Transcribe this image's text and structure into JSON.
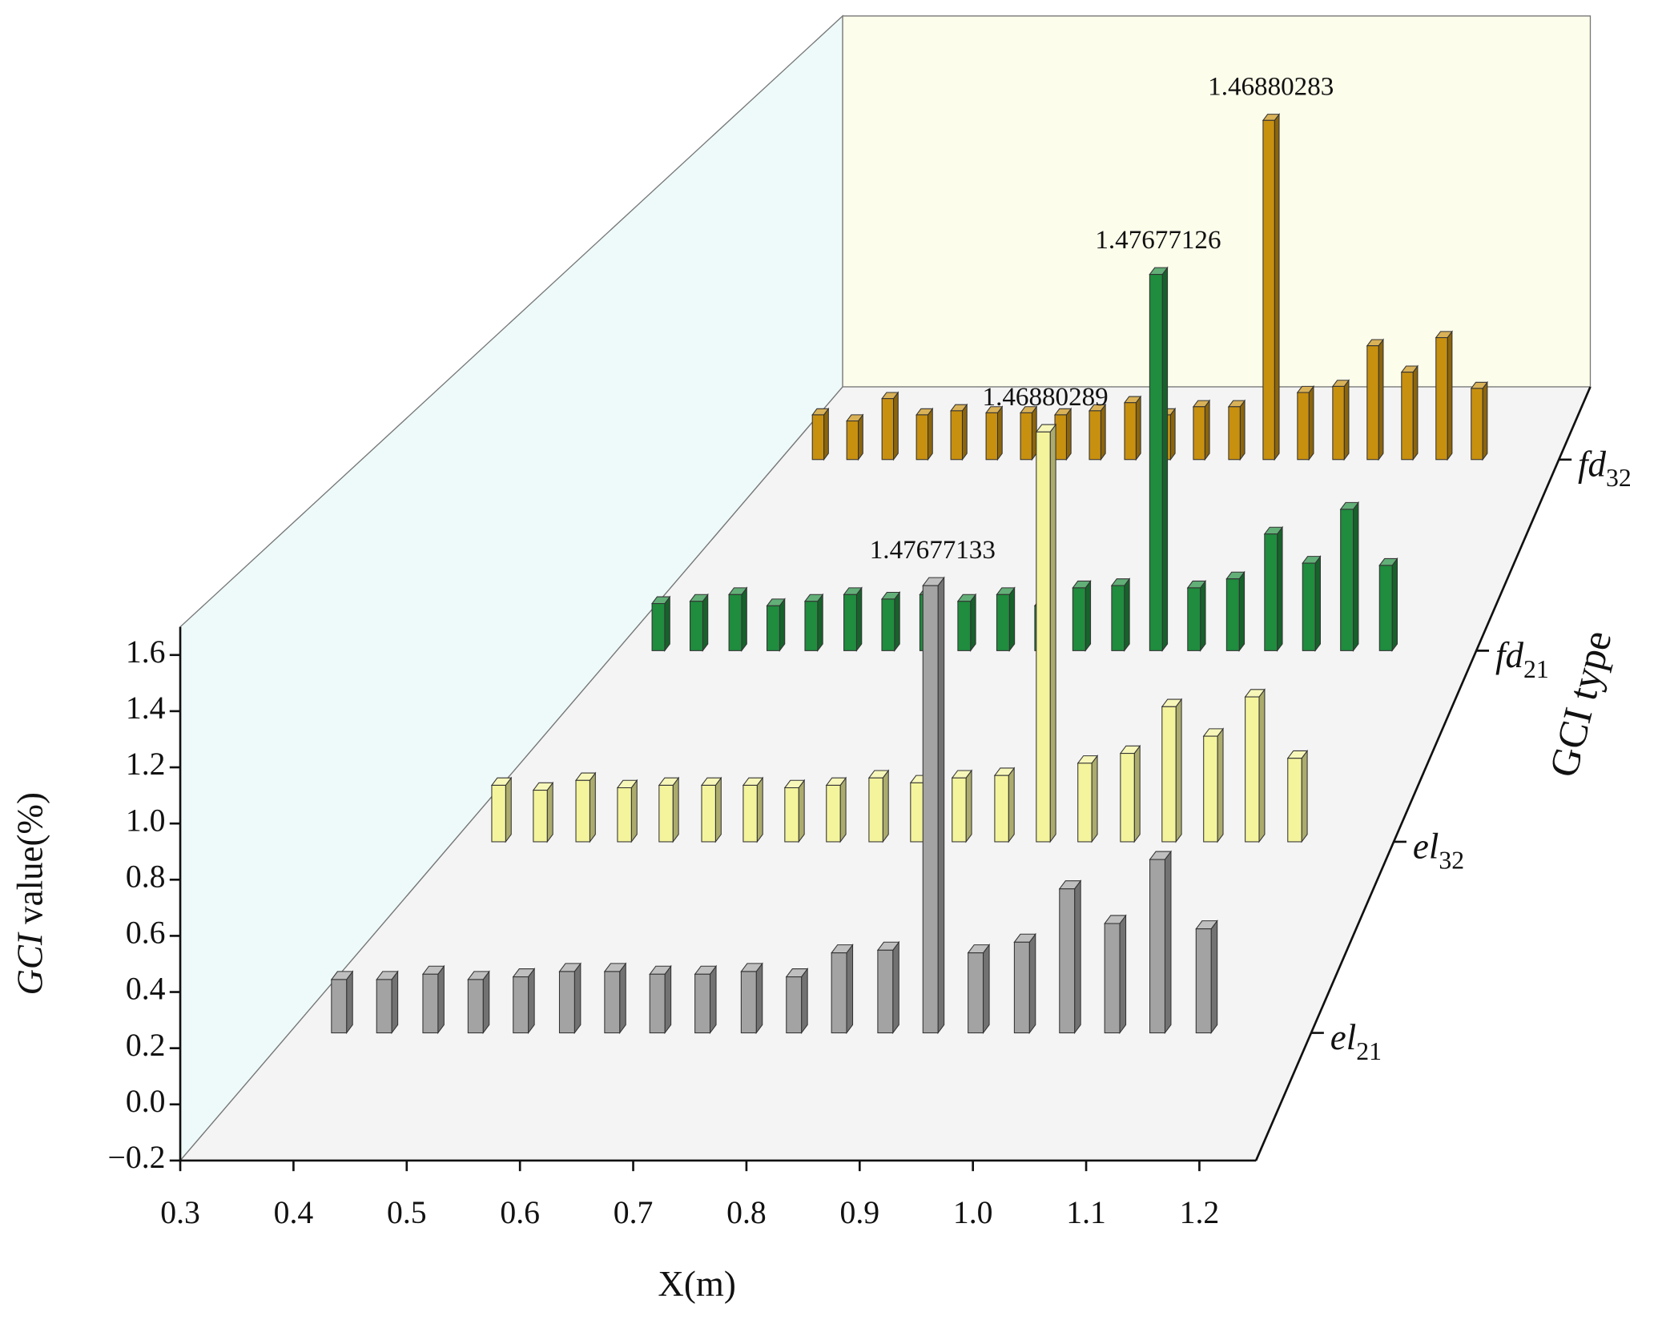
{
  "chart_data": {
    "type": "bar3d",
    "x_label": "X(m)",
    "y_label": "GCI value(%)",
    "z_label": "GCI type",
    "x": [
      0.346,
      0.388,
      0.431,
      0.473,
      0.515,
      0.558,
      0.6,
      0.642,
      0.684,
      0.727,
      0.769,
      0.811,
      0.854,
      0.896,
      0.938,
      0.981,
      1.023,
      1.065,
      1.107,
      1.15
    ],
    "xlim": [
      0.3,
      1.25
    ],
    "xticks": [
      0.3,
      0.4,
      0.5,
      0.6,
      0.7,
      0.8,
      0.9,
      {
        "value": 1,
        "label": "1.0"
      },
      1.1,
      1.2
    ],
    "ylim": [
      -0.2,
      1.7
    ],
    "yticks": [
      {
        "value": -0.2,
        "label": "−0.2"
      },
      {
        "value": 0,
        "label": "0.0"
      },
      0.2,
      0.4,
      0.6,
      0.8,
      {
        "value": 1,
        "label": "1.0"
      },
      1.2,
      1.4,
      1.6
    ],
    "series": [
      {
        "name": "el21",
        "color": "#a3a3a3",
        "values": [
          0.0,
          0.0,
          0.02,
          0.0,
          0.01,
          0.03,
          0.03,
          0.02,
          0.02,
          0.03,
          0.01,
          0.1,
          0.11,
          1.47677133,
          0.1,
          0.14,
          0.34,
          0.21,
          0.45,
          0.19
        ],
        "value_labels": [
          null,
          null,
          null,
          null,
          null,
          null,
          null,
          null,
          null,
          null,
          null,
          null,
          null,
          "1.47677133",
          null,
          null,
          null,
          null,
          null,
          null
        ]
      },
      {
        "name": "el32",
        "color": "#f4f49c",
        "values": [
          0.03,
          0.01,
          0.05,
          0.02,
          0.03,
          0.03,
          0.03,
          0.02,
          0.03,
          0.06,
          0.04,
          0.06,
          0.07,
          1.46880289,
          0.12,
          0.16,
          0.35,
          0.23,
          0.39,
          0.14
        ],
        "value_labels": [
          null,
          null,
          null,
          null,
          null,
          null,
          null,
          null,
          null,
          null,
          null,
          null,
          null,
          "1.46880289",
          null,
          null,
          null,
          null,
          null,
          null
        ]
      },
      {
        "name": "fd21",
        "color": "#1f8c3e",
        "values": [
          0.01,
          0.02,
          0.05,
          0.0,
          0.02,
          0.05,
          0.03,
          0.05,
          0.02,
          0.05,
          0.0,
          0.08,
          0.09,
          1.47677126,
          0.08,
          0.12,
          0.32,
          0.19,
          0.43,
          0.18
        ],
        "value_labels": [
          null,
          null,
          null,
          null,
          null,
          null,
          null,
          null,
          null,
          null,
          null,
          null,
          null,
          "1.47677126",
          null,
          null,
          null,
          null,
          null,
          null
        ]
      },
      {
        "name": "fd32",
        "color": "#c8900f",
        "values": [
          0.02,
          -0.01,
          0.1,
          0.02,
          0.04,
          0.03,
          0.03,
          0.02,
          0.04,
          0.08,
          0.02,
          0.06,
          0.06,
          1.46880283,
          0.13,
          0.16,
          0.36,
          0.23,
          0.4,
          0.15
        ],
        "value_labels": [
          null,
          null,
          null,
          null,
          null,
          null,
          null,
          null,
          null,
          null,
          null,
          null,
          null,
          "1.46880283",
          null,
          null,
          null,
          null,
          null,
          null
        ]
      }
    ]
  }
}
